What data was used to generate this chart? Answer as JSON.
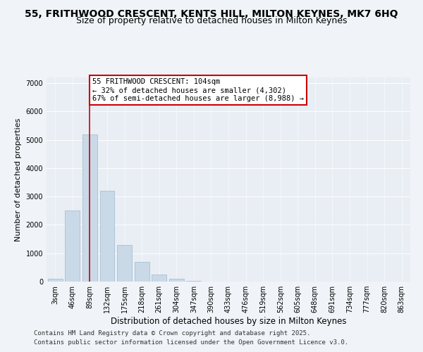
{
  "title_line1": "55, FRITHWOOD CRESCENT, KENTS HILL, MILTON KEYNES, MK7 6HQ",
  "title_line2": "Size of property relative to detached houses in Milton Keynes",
  "xlabel": "Distribution of detached houses by size in Milton Keynes",
  "ylabel": "Number of detached properties",
  "bin_labels": [
    "3sqm",
    "46sqm",
    "89sqm",
    "132sqm",
    "175sqm",
    "218sqm",
    "261sqm",
    "304sqm",
    "347sqm",
    "390sqm",
    "433sqm",
    "476sqm",
    "519sqm",
    "562sqm",
    "605sqm",
    "648sqm",
    "691sqm",
    "734sqm",
    "777sqm",
    "820sqm",
    "863sqm"
  ],
  "bar_values": [
    100,
    2500,
    5200,
    3200,
    1300,
    700,
    250,
    100,
    30,
    10,
    5,
    2,
    1,
    1,
    0,
    0,
    0,
    0,
    0,
    0,
    0
  ],
  "bar_color": "#c9d9e8",
  "bar_edge_color": "#a0b8cc",
  "vline_x": 2.0,
  "annotation_text": "55 FRITHWOOD CRESCENT: 104sqm\n← 32% of detached houses are smaller (4,302)\n67% of semi-detached houses are larger (8,988) →",
  "annotation_box_color": "#ffffff",
  "annotation_box_edge": "#cc0000",
  "vline_color": "#cc0000",
  "ylim": [
    0,
    7200
  ],
  "yticks": [
    0,
    1000,
    2000,
    3000,
    4000,
    5000,
    6000,
    7000
  ],
  "background_color": "#f0f4f8",
  "plot_bg_color": "#e8eef4",
  "footer_line1": "Contains HM Land Registry data © Crown copyright and database right 2025.",
  "footer_line2": "Contains public sector information licensed under the Open Government Licence v3.0.",
  "title_fontsize": 10,
  "subtitle_fontsize": 9,
  "axis_label_fontsize": 8,
  "tick_fontsize": 7,
  "annotation_fontsize": 7.5,
  "footer_fontsize": 6.5
}
